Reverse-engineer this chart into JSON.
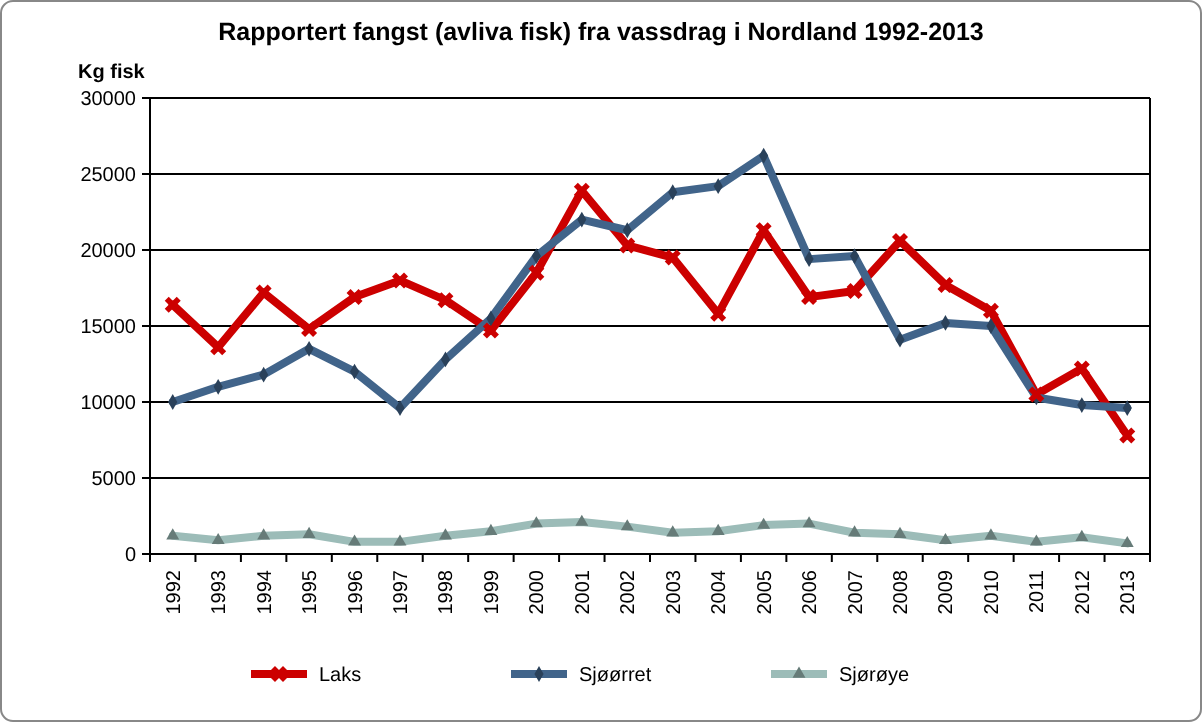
{
  "chart_data": {
    "type": "line",
    "title": "Rapportert fangst (avliva fisk) fra vassdrag  i Nordland 1992-2013",
    "ylabel": "Kg fisk",
    "categories": [
      "1992",
      "1993",
      "1994",
      "1995",
      "1996",
      "1997",
      "1998",
      "1999",
      "2000",
      "2001",
      "2002",
      "2003",
      "2004",
      "2005",
      "2006",
      "2007",
      "2008",
      "2009",
      "2010",
      "2011",
      "2012",
      "2013"
    ],
    "series": [
      {
        "name": "Laks",
        "color": "#cc0000",
        "marker": "cross",
        "values": [
          16400,
          13600,
          17200,
          14800,
          16900,
          18000,
          16700,
          14700,
          18500,
          23900,
          20300,
          19500,
          15800,
          21300,
          16900,
          17300,
          20600,
          17700,
          16000,
          10500,
          12200,
          7800
        ]
      },
      {
        "name": "Sjøørret",
        "color": "#41648a",
        "marker": "diamond",
        "values": [
          10000,
          11000,
          11800,
          13500,
          12000,
          9600,
          12800,
          15500,
          19600,
          22000,
          21300,
          23800,
          24200,
          26200,
          19400,
          19600,
          14100,
          15200,
          15000,
          10300,
          9800,
          9600
        ]
      },
      {
        "name": "Sjørøye",
        "color": "#9cbcb8",
        "marker": "triangle",
        "values": [
          1200,
          900,
          1200,
          1300,
          800,
          800,
          1200,
          1500,
          2000,
          2100,
          1800,
          1400,
          1500,
          1900,
          2000,
          1400,
          1300,
          900,
          1200,
          800,
          1100,
          700
        ]
      }
    ],
    "ylim": [
      0,
      30000
    ],
    "yticks": [
      0,
      5000,
      10000,
      15000,
      20000,
      25000,
      30000
    ],
    "grid": "y",
    "legend": "bottom"
  }
}
